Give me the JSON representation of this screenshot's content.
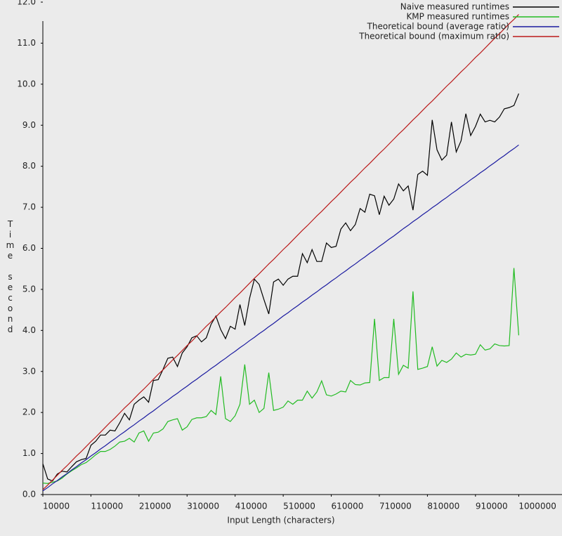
{
  "chart_data": {
    "type": "line",
    "x_label": "Input Length (characters)",
    "y_label": "Time second",
    "x": [
      10000,
      20000,
      30000,
      40000,
      50000,
      60000,
      70000,
      80000,
      90000,
      100000,
      110000,
      120000,
      130000,
      140000,
      150000,
      160000,
      170000,
      180000,
      190000,
      200000,
      210000,
      220000,
      230000,
      240000,
      250000,
      260000,
      270000,
      280000,
      290000,
      300000,
      310000,
      320000,
      330000,
      340000,
      350000,
      360000,
      370000,
      380000,
      390000,
      400000,
      410000,
      420000,
      430000,
      440000,
      450000,
      460000,
      470000,
      480000,
      490000,
      500000,
      510000,
      520000,
      530000,
      540000,
      550000,
      560000,
      570000,
      580000,
      590000,
      600000,
      610000,
      620000,
      630000,
      640000,
      650000,
      660000,
      670000,
      680000,
      690000,
      700000,
      710000,
      720000,
      730000,
      740000,
      750000,
      760000,
      770000,
      780000,
      790000,
      800000,
      810000,
      820000,
      830000,
      840000,
      850000,
      860000,
      870000,
      880000,
      890000,
      900000,
      910000,
      920000,
      930000,
      940000,
      950000,
      960000,
      970000,
      980000,
      990000,
      1000000
    ],
    "series": [
      {
        "name": "Naive measured runtimes",
        "color": "#000000",
        "values": [
          0.75,
          0.38,
          0.33,
          0.5,
          0.57,
          0.55,
          0.68,
          0.8,
          0.85,
          0.88,
          1.2,
          1.3,
          1.45,
          1.45,
          1.57,
          1.55,
          1.75,
          1.98,
          1.82,
          2.2,
          2.3,
          2.38,
          2.25,
          2.78,
          2.8,
          3.05,
          3.32,
          3.35,
          3.12,
          3.45,
          3.6,
          3.82,
          3.87,
          3.72,
          3.82,
          4.15,
          4.35,
          4.02,
          3.8,
          4.1,
          4.03,
          4.63,
          4.12,
          4.78,
          5.25,
          5.12,
          4.75,
          4.4,
          5.18,
          5.25,
          5.1,
          5.25,
          5.32,
          5.32,
          5.87,
          5.65,
          5.97,
          5.68,
          5.68,
          6.13,
          6.02,
          6.05,
          6.47,
          6.62,
          6.43,
          6.58,
          6.97,
          6.88,
          7.32,
          7.28,
          6.82,
          7.27,
          7.05,
          7.2,
          7.57,
          7.4,
          7.52,
          6.93,
          7.8,
          7.88,
          7.78,
          9.13,
          8.4,
          8.15,
          8.27,
          9.08,
          8.35,
          8.62,
          9.28,
          8.75,
          8.97,
          9.27,
          9.08,
          9.12,
          9.08,
          9.2,
          9.4,
          9.43,
          9.48,
          9.77
        ]
      },
      {
        "name": "KMP measured runtimes",
        "color": "#22bb22",
        "values": [
          0.28,
          0.27,
          0.3,
          0.33,
          0.4,
          0.5,
          0.58,
          0.65,
          0.73,
          0.78,
          0.87,
          0.97,
          1.05,
          1.05,
          1.1,
          1.18,
          1.28,
          1.3,
          1.37,
          1.28,
          1.5,
          1.55,
          1.3,
          1.5,
          1.52,
          1.6,
          1.78,
          1.82,
          1.85,
          1.57,
          1.65,
          1.83,
          1.87,
          1.87,
          1.9,
          2.05,
          1.95,
          2.88,
          1.85,
          1.78,
          1.92,
          2.2,
          3.17,
          2.2,
          2.3,
          2.0,
          2.1,
          2.97,
          2.05,
          2.08,
          2.13,
          2.28,
          2.2,
          2.3,
          2.3,
          2.52,
          2.35,
          2.5,
          2.77,
          2.43,
          2.4,
          2.45,
          2.52,
          2.5,
          2.78,
          2.68,
          2.67,
          2.72,
          2.73,
          4.28,
          2.78,
          2.85,
          2.85,
          4.28,
          2.93,
          3.15,
          3.08,
          4.95,
          3.05,
          3.08,
          3.12,
          3.6,
          3.13,
          3.27,
          3.22,
          3.3,
          3.45,
          3.35,
          3.42,
          3.4,
          3.42,
          3.65,
          3.52,
          3.55,
          3.67,
          3.63,
          3.62,
          3.63,
          5.52,
          3.88
        ]
      },
      {
        "name": "Theoretical bound (average ratio)",
        "color": "#1a1aa0",
        "values": [
          0.09,
          0.17,
          0.26,
          0.34,
          0.43,
          0.51,
          0.6,
          0.68,
          0.77,
          0.85,
          0.94,
          1.02,
          1.11,
          1.19,
          1.28,
          1.36,
          1.45,
          1.53,
          1.62,
          1.7,
          1.79,
          1.87,
          1.96,
          2.04,
          2.13,
          2.22,
          2.3,
          2.39,
          2.47,
          2.56,
          2.64,
          2.73,
          2.81,
          2.9,
          2.98,
          3.07,
          3.15,
          3.24,
          3.32,
          3.41,
          3.49,
          3.58,
          3.66,
          3.75,
          3.83,
          3.92,
          4.0,
          4.09,
          4.17,
          4.26,
          4.35,
          4.43,
          4.52,
          4.6,
          4.69,
          4.77,
          4.86,
          4.94,
          5.03,
          5.11,
          5.2,
          5.28,
          5.37,
          5.45,
          5.54,
          5.62,
          5.71,
          5.79,
          5.88,
          5.96,
          6.05,
          6.13,
          6.22,
          6.3,
          6.39,
          6.48,
          6.56,
          6.65,
          6.73,
          6.82,
          6.9,
          6.99,
          7.07,
          7.16,
          7.24,
          7.33,
          7.41,
          7.5,
          7.58,
          7.67,
          7.75,
          7.84,
          7.92,
          8.01,
          8.09,
          8.18,
          8.26,
          8.35,
          8.43,
          8.52
        ]
      },
      {
        "name": "Theoretical bound (maximum ratio)",
        "color": "#bb1a1a",
        "values": [
          0.12,
          0.23,
          0.35,
          0.47,
          0.59,
          0.7,
          0.82,
          0.94,
          1.05,
          1.17,
          1.29,
          1.4,
          1.52,
          1.64,
          1.76,
          1.87,
          1.99,
          2.11,
          2.22,
          2.34,
          2.46,
          2.57,
          2.69,
          2.81,
          2.93,
          3.04,
          3.16,
          3.28,
          3.39,
          3.51,
          3.63,
          3.74,
          3.86,
          3.98,
          4.1,
          4.21,
          4.33,
          4.45,
          4.56,
          4.68,
          4.8,
          4.91,
          5.03,
          5.15,
          5.27,
          5.38,
          5.5,
          5.62,
          5.73,
          5.85,
          5.97,
          6.08,
          6.2,
          6.32,
          6.44,
          6.55,
          6.67,
          6.79,
          6.9,
          7.02,
          7.14,
          7.25,
          7.37,
          7.49,
          7.61,
          7.72,
          7.84,
          7.96,
          8.07,
          8.19,
          8.31,
          8.42,
          8.54,
          8.66,
          8.78,
          8.89,
          9.01,
          9.13,
          9.24,
          9.36,
          9.48,
          9.59,
          9.71,
          9.83,
          9.95,
          10.06,
          10.18,
          10.3,
          10.41,
          10.53,
          10.65,
          10.76,
          10.88,
          11.0,
          11.12,
          11.23,
          11.35,
          11.47,
          11.58,
          11.7
        ]
      }
    ],
    "xlim": [
      10000,
      1090000
    ],
    "ylim": [
      0,
      12
    ],
    "xticks": [
      10000,
      110000,
      210000,
      310000,
      410000,
      510000,
      610000,
      710000,
      810000,
      910000,
      1000000
    ],
    "yticks": [
      {
        "value": 0,
        "label": "0.0"
      },
      {
        "value": 1,
        "label": "1.0"
      },
      {
        "value": 2,
        "label": "2.0"
      },
      {
        "value": 3,
        "label": "3.0"
      },
      {
        "value": 4,
        "label": "4.0"
      },
      {
        "value": 5,
        "label": "5.0"
      },
      {
        "value": 6,
        "label": "6.0"
      },
      {
        "value": 7,
        "label": "7.0"
      },
      {
        "value": 8,
        "label": "8.0"
      },
      {
        "value": 9,
        "label": "9.0"
      },
      {
        "value": 10,
        "label": "10.0"
      },
      {
        "value": 11,
        "label": "11.0"
      },
      {
        "value": 12,
        "label": "12.0"
      }
    ],
    "legend": "top-right"
  }
}
